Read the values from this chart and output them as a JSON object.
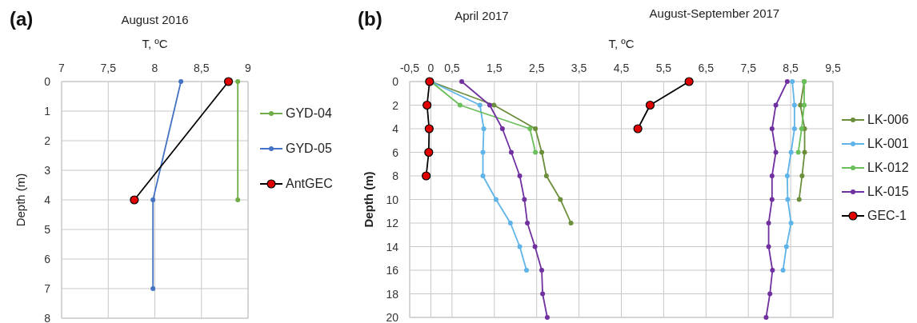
{
  "chart_data": [
    {
      "type": "line",
      "title": "August 2016",
      "xlabel": "T, ºC",
      "ylabel": "Depth (m)",
      "annotations": [
        "(a)"
      ],
      "xlim": [
        7,
        9
      ],
      "xticks": [
        7,
        {
          "value": 7.5,
          "label": "7,5"
        },
        8,
        {
          "value": 8.5,
          "label": "8,5"
        },
        9
      ],
      "ylim": [
        8,
        0
      ],
      "yticks": [
        0,
        1,
        2,
        3,
        4,
        5,
        6,
        7,
        8
      ],
      "grid": true,
      "legend": "right",
      "marker": "circle",
      "series": [
        {
          "name": "GYD-04",
          "color": "#70ad47",
          "x": [
            8.89,
            8.89
          ],
          "values": [
            0,
            4
          ]
        },
        {
          "name": "GYD-05",
          "color": "#4472c4",
          "x": [
            8.28,
            7.98,
            7.98
          ],
          "values": [
            0,
            4,
            7
          ]
        },
        {
          "name": "AntGEC",
          "color": "#000000",
          "colors": [
            "#e00000",
            "#e00000"
          ],
          "x": [
            8.79,
            7.78
          ],
          "values": [
            0,
            4
          ]
        }
      ]
    },
    {
      "type": "line",
      "xlabel": "T, ºC",
      "ylabel": "Depth (m)",
      "annotations": [
        "(b)",
        "April 2017",
        "August-September 2017"
      ],
      "xlim": [
        -0.5,
        9.5
      ],
      "xticks": [
        {
          "value": -0.5,
          "label": "-0,5"
        },
        0,
        {
          "value": 0.5,
          "label": "0,5"
        },
        {
          "value": 1.5,
          "label": "1,5"
        },
        {
          "value": 2.5,
          "label": "2,5"
        },
        {
          "value": 3.5,
          "label": "3,5"
        },
        {
          "value": 4.5,
          "label": "4,5"
        },
        {
          "value": 5.5,
          "label": "5,5"
        },
        {
          "value": 6.5,
          "label": "6,5"
        },
        {
          "value": 7.5,
          "label": "7,5"
        },
        {
          "value": 8.5,
          "label": "8,5"
        },
        {
          "value": 9.5,
          "label": "9,5"
        }
      ],
      "ylim": [
        20,
        0
      ],
      "yticks": [
        0,
        2,
        4,
        6,
        8,
        10,
        12,
        14,
        16,
        18,
        20
      ],
      "grid": true,
      "legend": "right",
      "marker": "circle",
      "series": [
        {
          "name": "LK-006",
          "color": "#6b8e3a",
          "x": [
            0,
            1.49,
            2.47,
            2.62,
            2.73,
            3.06,
            3.31,
            null,
            8.82,
            8.73,
            8.83,
            8.83,
            8.77,
            8.7
          ],
          "values": [
            0,
            2,
            4,
            6,
            8,
            10,
            12,
            null,
            0,
            2,
            4,
            6,
            8,
            10
          ]
        },
        {
          "name": "LK-001",
          "color": "#5eb3e8",
          "x": [
            0,
            1.16,
            1.25,
            1.23,
            1.23,
            1.54,
            1.88,
            2.1,
            2.26,
            null,
            8.54,
            8.59,
            8.59,
            8.51,
            8.42,
            8.43,
            8.51,
            8.4,
            8.32
          ],
          "values": [
            0,
            2,
            4,
            6,
            8,
            10,
            12,
            14,
            16,
            null,
            0,
            2,
            4,
            6,
            8,
            10,
            12,
            14,
            16
          ]
        },
        {
          "name": "LK-012",
          "color": "#6abf5a",
          "x": [
            0,
            0.69,
            2.34,
            2.47,
            null,
            8.82,
            8.82,
            8.76,
            8.68
          ],
          "values": [
            0,
            2,
            4,
            6,
            null,
            0,
            2,
            4,
            6
          ]
        },
        {
          "name": "LK-015",
          "color": "#7030a0",
          "x": [
            0.73,
            1.39,
            1.69,
            1.9,
            2.1,
            2.21,
            2.28,
            2.46,
            2.62,
            2.64,
            2.75,
            null,
            8.42,
            8.15,
            8.06,
            8.15,
            8.06,
            8.06,
            7.98,
            7.98,
            8.07,
            8.01,
            7.92
          ],
          "values": [
            0,
            2,
            4,
            6,
            8,
            10,
            12,
            14,
            16,
            18,
            20,
            null,
            0,
            2,
            4,
            6,
            8,
            10,
            12,
            14,
            16,
            18,
            20
          ]
        },
        {
          "name": "GEC-1",
          "color": "#000000",
          "colors": [
            "#e00000",
            "#e00000",
            "#e00000",
            "#e00000",
            "#e00000",
            null,
            "#e00000",
            "#e00000",
            "#e00000"
          ],
          "x": [
            -0.03,
            -0.09,
            -0.04,
            -0.05,
            -0.11,
            null,
            6.1,
            5.18,
            4.89
          ],
          "values": [
            0,
            2,
            4,
            6,
            8,
            null,
            0,
            2,
            4
          ]
        }
      ]
    }
  ]
}
